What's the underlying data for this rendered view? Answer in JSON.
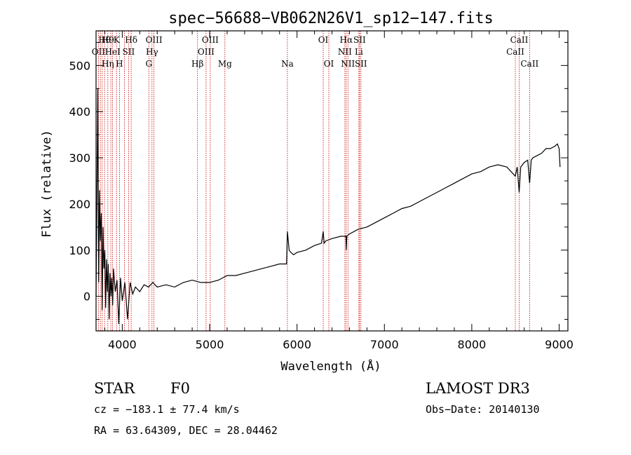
{
  "chart_data": {
    "type": "line",
    "title": "spec−56688−VB062N26V1_sp12−147.fits",
    "xlabel": "Wavelength (Å)",
    "ylabel": "Flux (relative)",
    "xlim": [
      3700,
      9100
    ],
    "ylim": [
      -75,
      575
    ],
    "xticks": [
      4000,
      5000,
      6000,
      7000,
      8000,
      9000
    ],
    "yticks": [
      0,
      100,
      200,
      300,
      400,
      500
    ],
    "series": [
      {
        "name": "spectrum",
        "x": [
          3700,
          3710,
          3720,
          3730,
          3740,
          3750,
          3760,
          3770,
          3780,
          3790,
          3800,
          3810,
          3820,
          3830,
          3840,
          3850,
          3860,
          3870,
          3880,
          3890,
          3900,
          3920,
          3940,
          3960,
          3980,
          4000,
          4030,
          4060,
          4090,
          4120,
          4150,
          4200,
          4250,
          4300,
          4350,
          4400,
          4500,
          4600,
          4700,
          4800,
          4900,
          5000,
          5100,
          5200,
          5300,
          5400,
          5500,
          5600,
          5700,
          5800,
          5880,
          5890,
          5900,
          5910,
          5930,
          5960,
          6000,
          6100,
          6200,
          6280,
          6300,
          6310,
          6330,
          6400,
          6500,
          6560,
          6563,
          6570,
          6600,
          6700,
          6800,
          6900,
          7000,
          7100,
          7200,
          7300,
          7400,
          7500,
          7600,
          7700,
          7800,
          7900,
          8000,
          8100,
          8200,
          8300,
          8400,
          8450,
          8498,
          8520,
          8542,
          8560,
          8600,
          8640,
          8662,
          8680,
          8700,
          8750,
          8800,
          8850,
          8900,
          8950,
          8980,
          9000,
          9010
        ],
        "values": [
          0,
          200,
          450,
          30,
          230,
          120,
          180,
          -30,
          150,
          60,
          100,
          -25,
          80,
          10,
          70,
          -50,
          50,
          0,
          40,
          -20,
          60,
          10,
          35,
          -60,
          40,
          -10,
          30,
          -50,
          30,
          5,
          20,
          10,
          25,
          20,
          30,
          20,
          25,
          20,
          30,
          35,
          30,
          30,
          35,
          45,
          45,
          50,
          55,
          60,
          65,
          70,
          70,
          140,
          120,
          100,
          95,
          90,
          95,
          100,
          110,
          115,
          140,
          115,
          120,
          125,
          130,
          130,
          100,
          130,
          135,
          145,
          150,
          160,
          170,
          180,
          190,
          195,
          205,
          215,
          225,
          235,
          245,
          255,
          265,
          270,
          280,
          285,
          280,
          270,
          260,
          280,
          225,
          280,
          290,
          295,
          245,
          295,
          300,
          305,
          310,
          320,
          320,
          325,
          330,
          320,
          280
        ]
      }
    ],
    "vlines": [
      3727,
      3750,
      3771,
      3798,
      3835,
      3869,
      3889,
      3934,
      3968,
      4026,
      4072,
      4102,
      4304,
      4340,
      4363,
      4861,
      4959,
      5007,
      5175,
      5890,
      6300,
      6364,
      6548,
      6563,
      6583,
      6708,
      6716,
      6731,
      8498,
      8542,
      8662
    ],
    "line_labels": [
      {
        "text": "OII",
        "x": 3727
      },
      {
        "text": "H9",
        "x": 3835
      },
      {
        "text": "Hθ",
        "x": 3798
      },
      {
        "text": "Hη",
        "x": 3835
      },
      {
        "text": "HeI",
        "x": 3889
      },
      {
        "text": "K",
        "x": 3934
      },
      {
        "text": "H",
        "x": 3968
      },
      {
        "text": "Hδ",
        "x": 4102
      },
      {
        "text": "SII",
        "x": 4072
      },
      {
        "text": "OIII",
        "x": 4363
      },
      {
        "text": "Hγ",
        "x": 4340
      },
      {
        "text": "G",
        "x": 4304
      },
      {
        "text": "OIII",
        "x": 5007
      },
      {
        "text": "OIII",
        "x": 4959
      },
      {
        "text": "Hβ",
        "x": 4861
      },
      {
        "text": "Mg",
        "x": 5175
      },
      {
        "text": "Na",
        "x": 5890
      },
      {
        "text": "OI",
        "x": 6300
      },
      {
        "text": "OI",
        "x": 6364
      },
      {
        "text": "Hα",
        "x": 6563
      },
      {
        "text": "SII",
        "x": 6716
      },
      {
        "text": "NII",
        "x": 6548
      },
      {
        "text": "Li",
        "x": 6708
      },
      {
        "text": "NII",
        "x": 6583
      },
      {
        "text": "SII",
        "x": 6731
      },
      {
        "text": "CaII",
        "x": 8542
      },
      {
        "text": "CaII",
        "x": 8498
      },
      {
        "text": "CaII",
        "x": 8662
      }
    ]
  },
  "info": {
    "class": "STAR",
    "subclass": "F0",
    "survey": "LAMOST DR3",
    "cz": "cz = −183.1 ± 77.4 km/s",
    "obs_date": "Obs−Date: 20140130",
    "coords": "RA =  63.64309, DEC =  28.04462"
  },
  "colors": {
    "axis": "#000000",
    "spectrum": "#000000",
    "vline": "#cc0000"
  }
}
